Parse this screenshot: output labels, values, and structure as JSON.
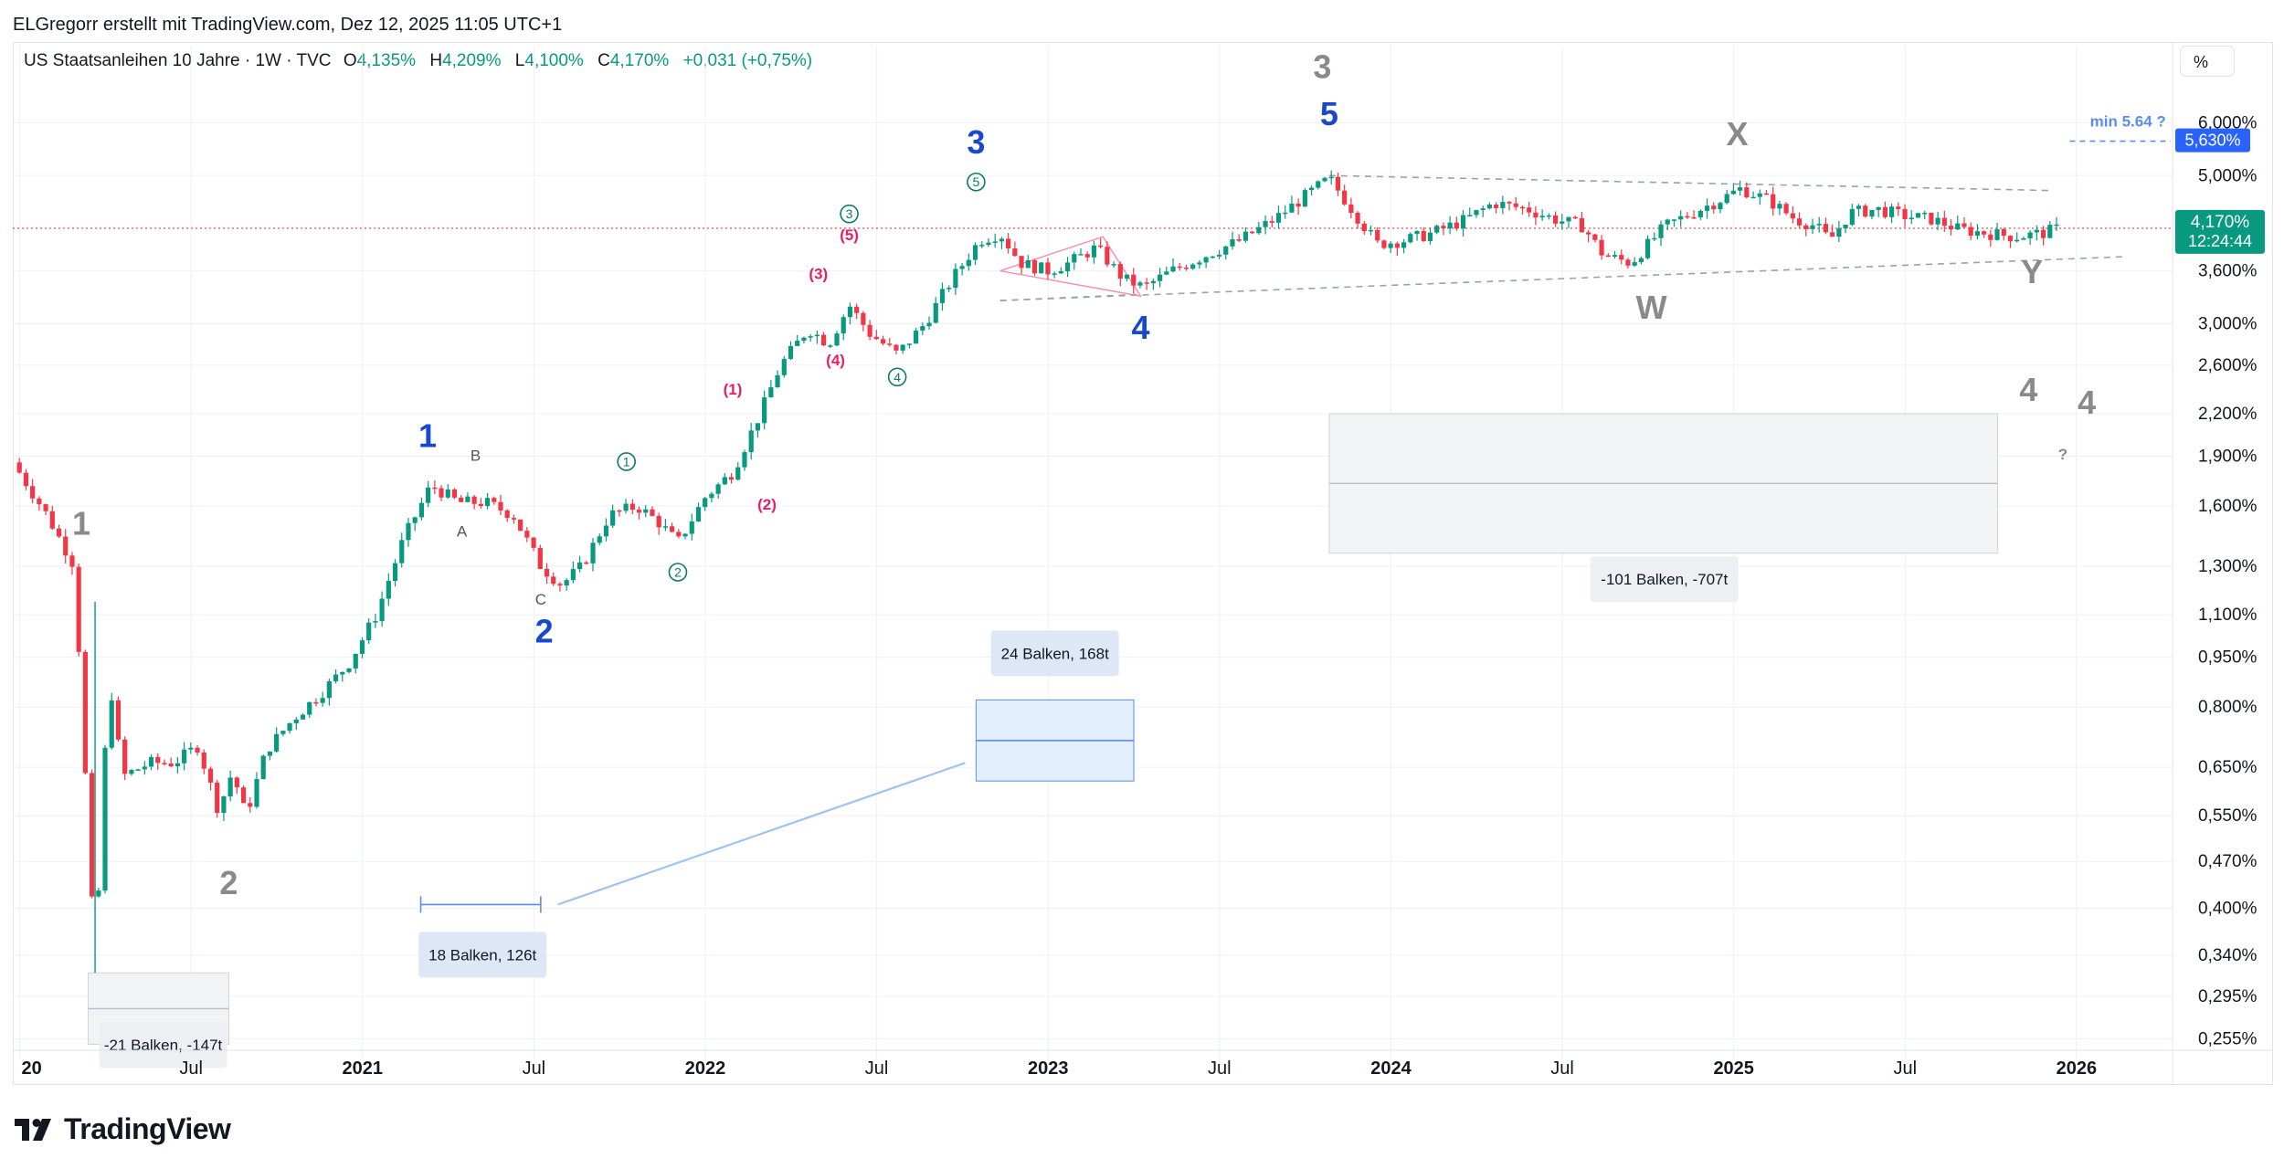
{
  "header": {
    "credit": "ELGregorr erstellt mit TradingView.com, Dez 12, 2025 11:05 UTC+1"
  },
  "symbol": {
    "name": "US Staatsanleihen 10 Jahre · 1W · TVC",
    "open_label": "O",
    "open": "4,135%",
    "high_label": "H",
    "high": "4,209%",
    "low_label": "L",
    "low": "4,100%",
    "close_label": "C",
    "close": "4,170%",
    "change": "+0,031 (+0,75%)"
  },
  "toolbar": {
    "unit_button": "%"
  },
  "price_tag": {
    "value": "4,170%",
    "countdown": "12:24:44"
  },
  "target_tag": {
    "value": "5,630%",
    "note": "min 5.64 ?"
  },
  "colors": {
    "up": "#089981",
    "down": "#f23645",
    "blue_wave": "#1848cc",
    "gray_wave": "#8a8a8a",
    "pink": "#e91e63",
    "green_wave": "#0f7a5c",
    "measure": "#5b8def"
  },
  "footer": {
    "logo_text": "TradingView"
  },
  "chart_data": {
    "type": "candlestick",
    "title": "US Staatsanleihen 10 Jahre · 1W · TVC",
    "y_scale": "log",
    "y_unit": "%",
    "y_ticks": [
      "6,000%",
      "5,000%",
      "3,600%",
      "3,000%",
      "2,600%",
      "2,200%",
      "1,900%",
      "1,600%",
      "1,300%",
      "1,100%",
      "0,950%",
      "0,800%",
      "0,650%",
      "0,550%",
      "0,470%",
      "0,400%",
      "0,340%",
      "0,295%",
      "0,255%"
    ],
    "y_tick_values": [
      6.0,
      5.0,
      3.6,
      3.0,
      2.6,
      2.2,
      1.9,
      1.6,
      1.3,
      1.1,
      0.95,
      0.8,
      0.65,
      0.55,
      0.47,
      0.4,
      0.34,
      0.295,
      0.255
    ],
    "x_ticks": [
      "20",
      "Jul",
      "2021",
      "Jul",
      "2022",
      "Jul",
      "2023",
      "Jul",
      "2024",
      "Jul",
      "2025",
      "Jul",
      "2026"
    ],
    "x_tick_values": [
      2020.0,
      2020.5,
      2021.0,
      2021.5,
      2022.0,
      2022.5,
      2023.0,
      2023.5,
      2024.0,
      2024.5,
      2025.0,
      2025.5,
      2026.0
    ],
    "last_close": 4.17,
    "path": [
      [
        2019.98,
        1.86
      ],
      [
        2020.08,
        1.55
      ],
      [
        2020.16,
        1.3
      ],
      [
        2020.22,
        0.33
      ],
      [
        2020.26,
        0.9
      ],
      [
        2020.3,
        0.63
      ],
      [
        2020.38,
        0.66
      ],
      [
        2020.45,
        0.66
      ],
      [
        2020.52,
        0.7
      ],
      [
        2020.58,
        0.56
      ],
      [
        2020.62,
        0.64
      ],
      [
        2020.66,
        0.55
      ],
      [
        2020.72,
        0.69
      ],
      [
        2020.8,
        0.77
      ],
      [
        2020.88,
        0.84
      ],
      [
        2020.96,
        0.93
      ],
      [
        2021.04,
        1.1
      ],
      [
        2021.12,
        1.43
      ],
      [
        2021.2,
        1.72
      ],
      [
        2021.28,
        1.62
      ],
      [
        2021.36,
        1.62
      ],
      [
        2021.44,
        1.55
      ],
      [
        2021.52,
        1.3
      ],
      [
        2021.58,
        1.22
      ],
      [
        2021.64,
        1.3
      ],
      [
        2021.72,
        1.55
      ],
      [
        2021.8,
        1.6
      ],
      [
        2021.86,
        1.52
      ],
      [
        2021.92,
        1.41
      ],
      [
        2022.0,
        1.65
      ],
      [
        2022.08,
        1.8
      ],
      [
        2022.16,
        2.2
      ],
      [
        2022.22,
        2.6
      ],
      [
        2022.3,
        2.95
      ],
      [
        2022.36,
        2.8
      ],
      [
        2022.42,
        3.2
      ],
      [
        2022.48,
        2.9
      ],
      [
        2022.56,
        2.7
      ],
      [
        2022.64,
        3.0
      ],
      [
        2022.72,
        3.5
      ],
      [
        2022.8,
        4.0
      ],
      [
        2022.86,
        4.1
      ],
      [
        2022.92,
        3.7
      ],
      [
        2023.0,
        3.6
      ],
      [
        2023.06,
        3.7
      ],
      [
        2023.14,
        3.9
      ],
      [
        2023.22,
        3.5
      ],
      [
        2023.28,
        3.4
      ],
      [
        2023.36,
        3.6
      ],
      [
        2023.46,
        3.8
      ],
      [
        2023.56,
        4.0
      ],
      [
        2023.66,
        4.3
      ],
      [
        2023.76,
        4.7
      ],
      [
        2023.82,
        4.95
      ],
      [
        2023.88,
        4.5
      ],
      [
        2023.96,
        3.95
      ],
      [
        2024.04,
        4.0
      ],
      [
        2024.12,
        4.1
      ],
      [
        2024.22,
        4.3
      ],
      [
        2024.3,
        4.55
      ],
      [
        2024.4,
        4.45
      ],
      [
        2024.48,
        4.3
      ],
      [
        2024.56,
        4.2
      ],
      [
        2024.62,
        3.8
      ],
      [
        2024.7,
        3.7
      ],
      [
        2024.8,
        4.2
      ],
      [
        2024.88,
        4.4
      ],
      [
        2024.96,
        4.6
      ],
      [
        2025.02,
        4.78
      ],
      [
        2025.1,
        4.6
      ],
      [
        2025.18,
        4.3
      ],
      [
        2025.24,
        4.2
      ],
      [
        2025.28,
        4.0
      ],
      [
        2025.34,
        4.4
      ],
      [
        2025.42,
        4.45
      ],
      [
        2025.5,
        4.35
      ],
      [
        2025.58,
        4.3
      ],
      [
        2025.66,
        4.15
      ],
      [
        2025.74,
        4.1
      ],
      [
        2025.82,
        4.05
      ],
      [
        2025.9,
        4.1
      ],
      [
        2025.95,
        4.17
      ]
    ],
    "wave_labels": [
      {
        "text": "1",
        "x": 2020.18,
        "y": 1.45,
        "color": "gray"
      },
      {
        "text": "2",
        "x": 2020.61,
        "y": 0.42,
        "color": "gray"
      },
      {
        "text": "1",
        "x": 2021.19,
        "y": 1.96,
        "color": "blue"
      },
      {
        "text": "B",
        "x": 2021.33,
        "y": 1.87,
        "color": "darkgray",
        "small": true
      },
      {
        "text": "A",
        "x": 2021.29,
        "y": 1.44,
        "color": "darkgray",
        "small": true
      },
      {
        "text": "C",
        "x": 2021.52,
        "y": 1.14,
        "color": "darkgray",
        "small": true
      },
      {
        "text": "2",
        "x": 2021.53,
        "y": 1.0,
        "color": "blue"
      },
      {
        "text": "1",
        "x": 2021.77,
        "y": 1.83,
        "color": "green",
        "circled": true
      },
      {
        "text": "2",
        "x": 2021.92,
        "y": 1.25,
        "color": "green",
        "circled": true
      },
      {
        "text": "(1)",
        "x": 2022.08,
        "y": 2.35,
        "color": "pink"
      },
      {
        "text": "(2)",
        "x": 2022.18,
        "y": 1.58,
        "color": "pink"
      },
      {
        "text": "(3)",
        "x": 2022.33,
        "y": 3.5,
        "color": "pink"
      },
      {
        "text": "(4)",
        "x": 2022.38,
        "y": 2.6,
        "color": "pink"
      },
      {
        "text": "3",
        "x": 2022.42,
        "y": 4.3,
        "color": "green",
        "circled": true
      },
      {
        "text": "(5)",
        "x": 2022.42,
        "y": 4.0,
        "color": "pink"
      },
      {
        "text": "4",
        "x": 2022.56,
        "y": 2.45,
        "color": "green",
        "circled": true
      },
      {
        "text": "5",
        "x": 2022.79,
        "y": 4.8,
        "color": "green",
        "circled": true
      },
      {
        "text": "3",
        "x": 2022.79,
        "y": 5.4,
        "color": "blue"
      },
      {
        "text": "4",
        "x": 2023.27,
        "y": 2.85,
        "color": "blue"
      },
      {
        "text": "5",
        "x": 2023.82,
        "y": 5.95,
        "color": "blue"
      },
      {
        "text": "3",
        "x": 2023.8,
        "y": 7.0,
        "color": "gray"
      },
      {
        "text": "X",
        "x": 2025.01,
        "y": 5.55,
        "color": "gray"
      },
      {
        "text": "W",
        "x": 2024.76,
        "y": 3.05,
        "color": "gray"
      },
      {
        "text": "Y",
        "x": 2025.87,
        "y": 3.45,
        "color": "gray"
      },
      {
        "text": "4",
        "x": 2025.86,
        "y": 2.3,
        "color": "gray"
      },
      {
        "text": "4",
        "x": 2026.03,
        "y": 2.2,
        "color": "gray"
      },
      {
        "text": "?",
        "x": 2025.96,
        "y": 1.88,
        "color": "gray",
        "small": true
      }
    ],
    "measures": [
      {
        "label": "-21 Balken, -147t",
        "x1": 2020.2,
        "x2": 2020.61,
        "y1": 0.32,
        "y2": 0.25,
        "style": "gray"
      },
      {
        "label": "18 Balken, 126t",
        "x1": 2021.17,
        "x2": 2021.52,
        "y1": 0.405,
        "y2": 0.405,
        "style": "blue-line"
      },
      {
        "label": "24 Balken, 168t",
        "x1": 2022.79,
        "x2": 2023.25,
        "y1": 0.82,
        "y2": 0.62,
        "style": "blue"
      },
      {
        "label": "-101 Balken, -707t",
        "x1": 2023.82,
        "x2": 2025.77,
        "y1": 2.2,
        "y2": 1.36,
        "style": "gray"
      }
    ]
  }
}
